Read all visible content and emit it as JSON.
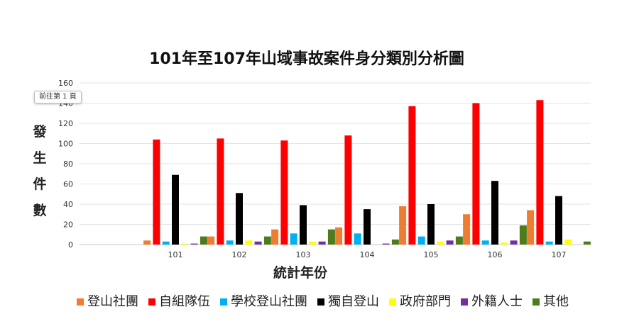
{
  "tooltip": "前往第 1 頁",
  "chart_data": {
    "type": "bar",
    "title": "101年至107年山域事故案件身分類別分析圖",
    "xlabel": "統計年份",
    "ylabel": "發生件數",
    "ylim": [
      0,
      160
    ],
    "yticks": [
      0,
      20,
      40,
      60,
      80,
      100,
      120,
      140,
      160
    ],
    "grid": true,
    "legend_position": "bottom",
    "categories": [
      "",
      "101",
      "102",
      "103",
      "104",
      "105",
      "106",
      "107"
    ],
    "series": [
      {
        "name": "登山社團",
        "color": "#ed7d31",
        "values": [
          0,
          4,
          8,
          15,
          17,
          38,
          30,
          34
        ]
      },
      {
        "name": "自組隊伍",
        "color": "#ff0000",
        "values": [
          0,
          104,
          105,
          103,
          108,
          137,
          140,
          143
        ]
      },
      {
        "name": "學校登山社團",
        "color": "#00b0f0",
        "values": [
          0,
          3,
          4,
          11,
          11,
          8,
          4,
          3
        ]
      },
      {
        "name": "獨自登山",
        "color": "#000000",
        "values": [
          0,
          69,
          51,
          39,
          35,
          40,
          63,
          48
        ]
      },
      {
        "name": "政府部門",
        "color": "#ffff00",
        "values": [
          0,
          1,
          4,
          3,
          0,
          3,
          2,
          5
        ]
      },
      {
        "name": "外籍人士",
        "color": "#7030a0",
        "values": [
          0,
          1,
          3,
          3,
          1,
          4,
          4,
          0
        ]
      },
      {
        "name": "其他",
        "color": "#4e7b1c",
        "values": [
          0,
          8,
          8,
          15,
          5,
          8,
          19,
          3
        ]
      }
    ]
  }
}
